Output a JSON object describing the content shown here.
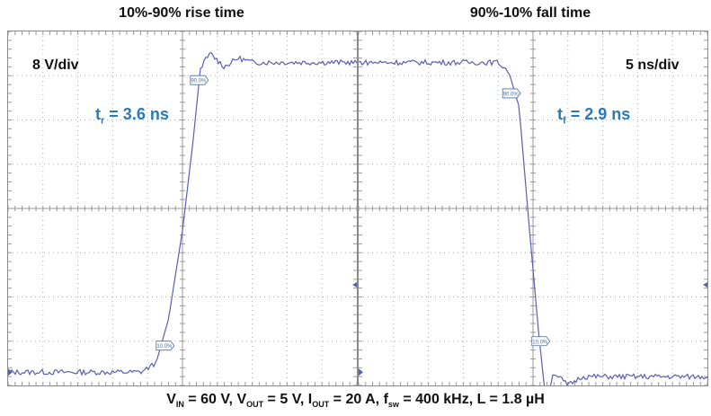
{
  "panels": [
    {
      "title": "10%-90% rise time",
      "scale_label": "8 V/div",
      "t_label": {
        "symbol": "t",
        "sub": "r",
        "value": "= 3.6 ns"
      },
      "markers": [
        "90.0%",
        "10.0%"
      ]
    },
    {
      "title": "90%-10% fall time",
      "scale_label": "5 ns/div",
      "t_label": {
        "symbol": "t",
        "sub": "f",
        "value": "= 2.9 ns"
      },
      "markers": [
        "90.0%",
        "10.0%"
      ]
    }
  ],
  "caption": {
    "parts": [
      {
        "text": "V",
        "sub": "IN",
        "after": " = 60 V, "
      },
      {
        "text": "V",
        "sub": "OUT",
        "after": " = 5 V, "
      },
      {
        "text": "I",
        "sub": "OUT",
        "after": " = 20 A, "
      },
      {
        "text": "f",
        "sub": "sw",
        "after": " = 400 kHz, L = 1.8 µH"
      }
    ]
  },
  "colors": {
    "trace": "#5a5fb0",
    "grid": "#b0b0b0",
    "accent": "#2a7ab8"
  },
  "chart_data": [
    {
      "type": "line",
      "title": "10%-90% rise time",
      "xlabel": "",
      "ylabel": "",
      "time_per_div_ns": 5,
      "volts_per_div": 8,
      "divisions_x": 10,
      "divisions_y": 8,
      "grid": true,
      "series": [
        {
          "x_ns": [
            -25,
            -6,
            -3.8,
            -2,
            0,
            1.5,
            2.6,
            4,
            6,
            8,
            10,
            25
          ],
          "y_div": [
            -3.7,
            -3.7,
            -3.5,
            -2.5,
            -0.5,
            1.5,
            3.2,
            3.5,
            3.2,
            3.4,
            3.3,
            3.3
          ]
        }
      ]
    },
    {
      "type": "line",
      "title": "90%-10% fall time",
      "xlabel": "",
      "ylabel": "",
      "time_per_div_ns": 5,
      "volts_per_div": 8,
      "divisions_x": 10,
      "divisions_y": 8,
      "grid": true,
      "series": [
        {
          "x_ns": [
            -25,
            -5,
            -3.5,
            -2,
            -0.5,
            0.8,
            1.8,
            3,
            5,
            7,
            25
          ],
          "y_div": [
            3.3,
            3.3,
            3.1,
            2.3,
            -0.5,
            -2.8,
            -4.3,
            -3.7,
            -4.0,
            -3.8,
            -3.8
          ]
        }
      ]
    }
  ]
}
